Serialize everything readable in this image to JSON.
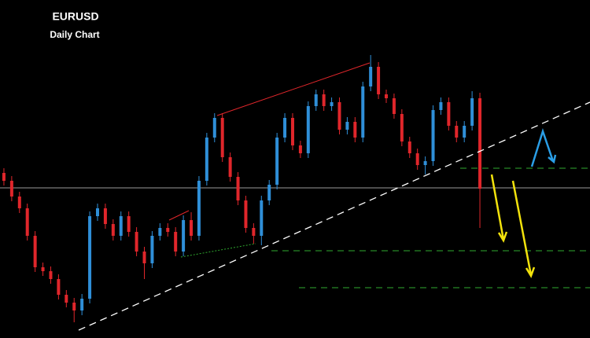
{
  "chart_data": {
    "type": "candlestick",
    "title": "EURUSD",
    "subtitle": "Daily Chart",
    "up_color": "#2f8fd8",
    "down_color": "#e0262b",
    "ylim": [
      0,
      430
    ],
    "open": [
      210,
      200,
      180,
      165,
      130,
      90,
      85,
      75,
      55,
      45,
      35,
      50,
      155,
      165,
      145,
      130,
      155,
      135,
      110,
      95,
      130,
      140,
      135,
      110,
      150,
      130,
      200,
      255,
      280,
      230,
      205,
      175,
      140,
      130,
      175,
      195,
      255,
      280,
      245,
      235,
      295,
      310,
      295,
      300,
      265,
      275,
      255,
      320,
      345,
      310,
      305,
      285,
      250,
      235,
      220,
      225,
      290,
      300,
      270,
      255,
      270,
      305
    ],
    "high": [
      216,
      206,
      186,
      171,
      136,
      96,
      91,
      81,
      61,
      51,
      56,
      161,
      171,
      171,
      151,
      161,
      161,
      141,
      116,
      136,
      146,
      146,
      141,
      156,
      160,
      206,
      261,
      286,
      286,
      236,
      211,
      181,
      146,
      181,
      201,
      261,
      286,
      286,
      251,
      301,
      316,
      316,
      306,
      306,
      281,
      281,
      326,
      360,
      351,
      316,
      311,
      291,
      256,
      241,
      231,
      296,
      306,
      306,
      276,
      276,
      314,
      312
    ],
    "low": [
      194,
      174,
      159,
      124,
      84,
      79,
      69,
      49,
      39,
      20,
      29,
      44,
      149,
      139,
      124,
      124,
      129,
      104,
      75,
      89,
      124,
      129,
      104,
      104,
      124,
      124,
      194,
      249,
      224,
      199,
      169,
      134,
      120,
      118,
      169,
      189,
      249,
      239,
      229,
      229,
      289,
      289,
      289,
      259,
      259,
      249,
      249,
      314,
      304,
      299,
      279,
      244,
      229,
      214,
      208,
      219,
      284,
      264,
      249,
      249,
      264,
      140
    ],
    "close": [
      200,
      180,
      165,
      130,
      90,
      85,
      75,
      55,
      45,
      35,
      50,
      155,
      165,
      145,
      130,
      155,
      135,
      110,
      95,
      130,
      140,
      135,
      110,
      150,
      130,
      200,
      255,
      280,
      230,
      205,
      175,
      140,
      130,
      175,
      195,
      255,
      280,
      245,
      235,
      295,
      310,
      295,
      300,
      265,
      275,
      255,
      320,
      345,
      310,
      305,
      285,
      250,
      235,
      220,
      225,
      290,
      300,
      270,
      255,
      270,
      305,
      190
    ]
  }
}
